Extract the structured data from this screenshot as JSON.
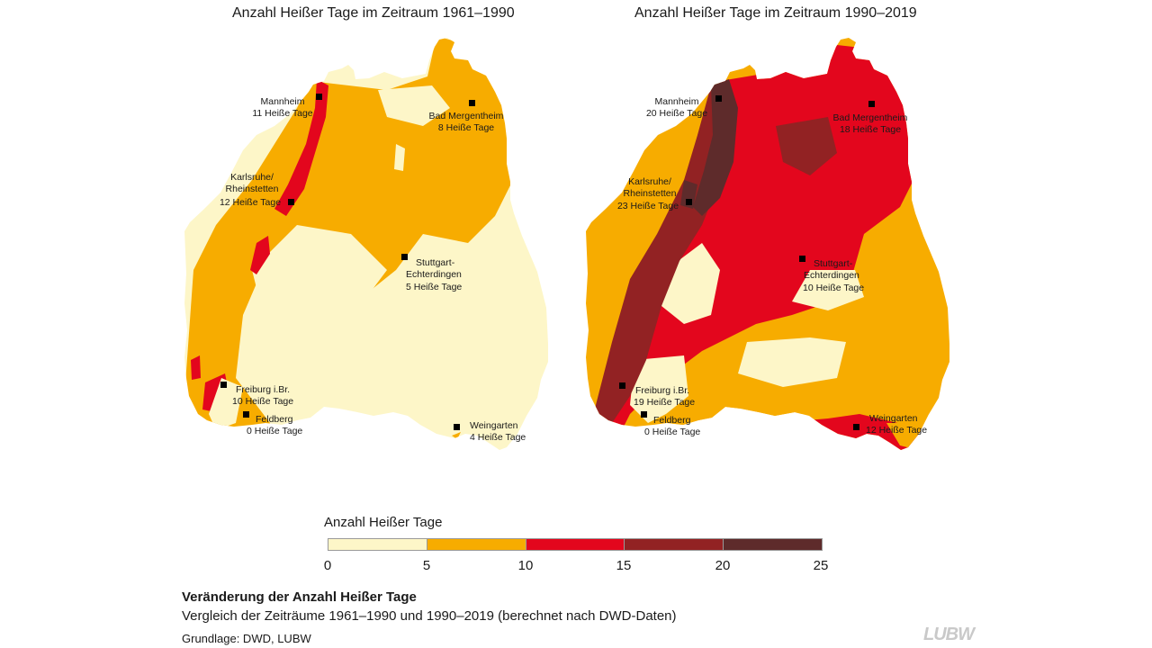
{
  "maps": [
    {
      "title": "Anzahl Heißer Tage im Zeitraum 1961–1990",
      "cities": [
        {
          "name": "Mannheim",
          "value": "11 Heiße Tage"
        },
        {
          "name": "Bad Mergentheim",
          "value": "8 Heiße Tage"
        },
        {
          "name": "Karlsruhe/ Rheinstetten",
          "value": "12 Heiße Tage"
        },
        {
          "name": "Stuttgart- Echterdingen",
          "value": "5 Heiße Tage"
        },
        {
          "name": "Freiburg i.Br.",
          "value": "10 Heiße Tage"
        },
        {
          "name": "Feldberg",
          "value": "0 Heiße Tage"
        },
        {
          "name": "Weingarten",
          "value": "4 Heiße Tage"
        }
      ]
    },
    {
      "title": "Anzahl Heißer Tage im Zeitraum 1990–2019",
      "cities": [
        {
          "name": "Mannheim",
          "value": "20 Heiße Tage"
        },
        {
          "name": "Bad Mergentheim",
          "value": "18 Heiße Tage"
        },
        {
          "name": "Karlsruhe/ Rheinstetten",
          "value": "23 Heiße Tage"
        },
        {
          "name": "Stuttgart- Echterdingen",
          "value": "10 Heiße Tage"
        },
        {
          "name": "Freiburg i.Br.",
          "value": "19 Heiße Tage"
        },
        {
          "name": "Feldberg",
          "value": "0 Heiße Tage"
        },
        {
          "name": "Weingarten",
          "value": "12 Heiße Tage"
        }
      ]
    }
  ],
  "legend": {
    "title": "Anzahl Heißer Tage",
    "ticks": [
      "0",
      "5",
      "10",
      "15",
      "20",
      "25"
    ],
    "colors": [
      "#fdf6c8",
      "#f7ac00",
      "#e3061d",
      "#922223",
      "#5e2b2b"
    ]
  },
  "caption": {
    "title": "Veränderung der Anzahl Heißer Tage",
    "subtitle": "Vergleich der Zeiträume 1961–1990 und 1990–2019 (berechnet nach DWD-Daten)",
    "source": "Grundlage: DWD, LUBW"
  },
  "logo": "LUBW"
}
